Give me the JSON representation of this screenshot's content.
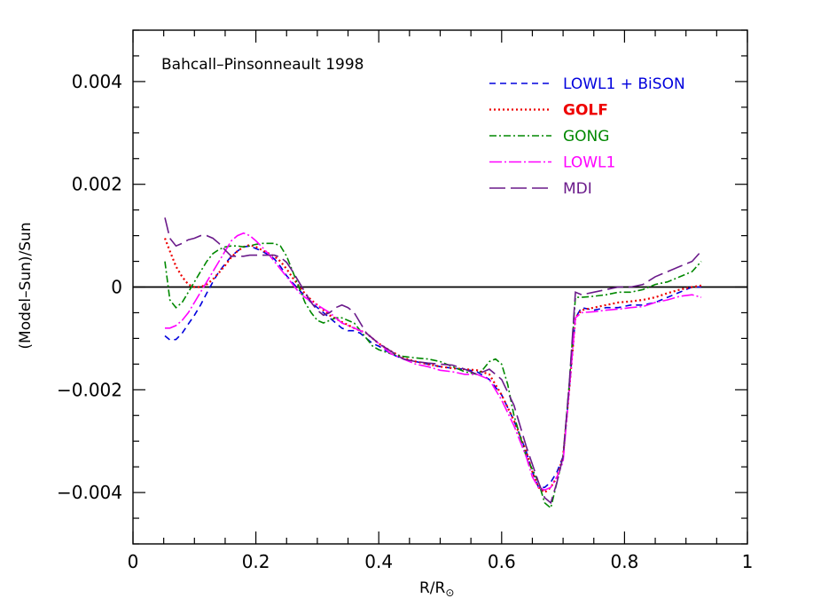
{
  "chart_data": {
    "type": "line",
    "title": "Bahcall–Pinsonneault 1998",
    "xlabel": "R/R",
    "xlabel_sub": "⊙",
    "ylabel": "(Model–Sun)/Sun",
    "xlim": [
      0,
      1
    ],
    "ylim": [
      -0.005,
      0.005
    ],
    "xticks": [
      {
        "v": 0,
        "label": "0"
      },
      {
        "v": 0.2,
        "label": "0.2"
      },
      {
        "v": 0.4,
        "label": "0.4"
      },
      {
        "v": 0.6,
        "label": "0.6"
      },
      {
        "v": 0.8,
        "label": "0.8"
      },
      {
        "v": 1,
        "label": "1"
      }
    ],
    "yticks": [
      {
        "v": -0.004,
        "label": "−0.004"
      },
      {
        "v": -0.002,
        "label": "−0.002"
      },
      {
        "v": 0,
        "label": "0"
      },
      {
        "v": 0.002,
        "label": "0.002"
      },
      {
        "v": 0.004,
        "label": "0.004"
      }
    ],
    "zero_line": true,
    "grid": false,
    "legend_position": "top-right",
    "series": [
      {
        "name": "LOWL1 + BiSON",
        "color": "#0000dd",
        "dash": "7,5",
        "bold": false,
        "x": [
          0.052,
          0.06,
          0.07,
          0.08,
          0.09,
          0.1,
          0.11,
          0.12,
          0.13,
          0.14,
          0.15,
          0.16,
          0.17,
          0.18,
          0.19,
          0.2,
          0.21,
          0.22,
          0.23,
          0.24,
          0.25,
          0.26,
          0.27,
          0.28,
          0.29,
          0.3,
          0.31,
          0.32,
          0.33,
          0.34,
          0.35,
          0.36,
          0.37,
          0.38,
          0.39,
          0.4,
          0.42,
          0.44,
          0.46,
          0.48,
          0.5,
          0.52,
          0.54,
          0.56,
          0.58,
          0.6,
          0.62,
          0.64,
          0.65,
          0.66,
          0.67,
          0.68,
          0.69,
          0.7,
          0.71,
          0.72,
          0.73,
          0.75,
          0.77,
          0.79,
          0.81,
          0.83,
          0.85,
          0.87,
          0.89,
          0.91,
          0.925
        ],
        "y": [
          -0.00095,
          -0.00103,
          -0.00102,
          -0.0009,
          -0.00072,
          -0.00055,
          -0.00035,
          -0.00012,
          0.0001,
          0.0003,
          0.00045,
          0.0006,
          0.0007,
          0.00078,
          0.0008,
          0.00075,
          0.0007,
          0.00063,
          0.00055,
          0.0004,
          0.00022,
          8e-05,
          -5e-05,
          -0.00018,
          -0.0003,
          -0.0004,
          -0.0005,
          -0.0006,
          -0.0007,
          -0.0008,
          -0.00085,
          -0.00085,
          -0.0009,
          -0.001,
          -0.0011,
          -0.00115,
          -0.0013,
          -0.0014,
          -0.00145,
          -0.0015,
          -0.00155,
          -0.00158,
          -0.0016,
          -0.00165,
          -0.0018,
          -0.0021,
          -0.0026,
          -0.0032,
          -0.0036,
          -0.0039,
          -0.0039,
          -0.0038,
          -0.0036,
          -0.0033,
          -0.002,
          -0.0006,
          -0.0004,
          -0.00045,
          -0.0004,
          -0.0004,
          -0.00035,
          -0.00035,
          -0.0003,
          -0.0002,
          -0.0001,
          0.0,
          0.0
        ]
      },
      {
        "name": "GOLF",
        "color": "#ee0000",
        "dash": "2,3",
        "bold": true,
        "x": [
          0.052,
          0.06,
          0.07,
          0.08,
          0.09,
          0.1,
          0.11,
          0.12,
          0.13,
          0.14,
          0.15,
          0.16,
          0.17,
          0.18,
          0.19,
          0.2,
          0.21,
          0.22,
          0.23,
          0.24,
          0.25,
          0.26,
          0.27,
          0.28,
          0.29,
          0.3,
          0.32,
          0.34,
          0.36,
          0.38,
          0.4,
          0.42,
          0.44,
          0.46,
          0.48,
          0.5,
          0.52,
          0.54,
          0.56,
          0.58,
          0.6,
          0.62,
          0.64,
          0.65,
          0.66,
          0.67,
          0.68,
          0.69,
          0.7,
          0.71,
          0.72,
          0.73,
          0.75,
          0.77,
          0.79,
          0.81,
          0.83,
          0.85,
          0.87,
          0.89,
          0.91,
          0.925
        ],
        "y": [
          0.00095,
          0.0007,
          0.0004,
          0.0002,
          5e-05,
          0.0,
          0.0,
          5e-05,
          0.00015,
          0.00028,
          0.00042,
          0.00058,
          0.0007,
          0.00078,
          0.00082,
          0.00078,
          0.00072,
          0.00066,
          0.0006,
          0.0005,
          0.00035,
          0.00018,
          2e-05,
          -0.00013,
          -0.00025,
          -0.00035,
          -0.00055,
          -0.00068,
          -0.0008,
          -0.0009,
          -0.0011,
          -0.00125,
          -0.00138,
          -0.00145,
          -0.0015,
          -0.00155,
          -0.00158,
          -0.0016,
          -0.00162,
          -0.0017,
          -0.0021,
          -0.0026,
          -0.0032,
          -0.0036,
          -0.0039,
          -0.004,
          -0.0039,
          -0.0037,
          -0.0033,
          -0.002,
          -0.0006,
          -0.00045,
          -0.0004,
          -0.00035,
          -0.0003,
          -0.00028,
          -0.00025,
          -0.0002,
          -0.00012,
          -5e-05,
          0.0,
          3e-05
        ]
      },
      {
        "name": "GONG",
        "color": "#008800",
        "dash": "8,3,2,3",
        "bold": false,
        "x": [
          0.052,
          0.06,
          0.07,
          0.08,
          0.09,
          0.1,
          0.11,
          0.12,
          0.13,
          0.14,
          0.15,
          0.16,
          0.17,
          0.18,
          0.19,
          0.2,
          0.21,
          0.22,
          0.23,
          0.24,
          0.25,
          0.26,
          0.27,
          0.28,
          0.29,
          0.3,
          0.31,
          0.32,
          0.33,
          0.34,
          0.35,
          0.36,
          0.37,
          0.38,
          0.39,
          0.4,
          0.42,
          0.44,
          0.46,
          0.48,
          0.5,
          0.52,
          0.54,
          0.56,
          0.57,
          0.58,
          0.59,
          0.6,
          0.61,
          0.62,
          0.64,
          0.66,
          0.67,
          0.68,
          0.69,
          0.7,
          0.71,
          0.72,
          0.73,
          0.75,
          0.77,
          0.79,
          0.81,
          0.83,
          0.85,
          0.87,
          0.89,
          0.91,
          0.925
        ],
        "y": [
          0.0005,
          -0.00025,
          -0.0004,
          -0.0003,
          -0.0001,
          0.0001,
          0.0003,
          0.0005,
          0.00065,
          0.00073,
          0.00078,
          0.0008,
          0.0008,
          0.00078,
          0.0008,
          0.00083,
          0.00085,
          0.00085,
          0.00085,
          0.0008,
          0.0006,
          0.0003,
          0.0,
          -0.0003,
          -0.0005,
          -0.00065,
          -0.0007,
          -0.00065,
          -0.0006,
          -0.0006,
          -0.00065,
          -0.0007,
          -0.00085,
          -0.001,
          -0.00115,
          -0.00122,
          -0.0013,
          -0.00135,
          -0.00138,
          -0.0014,
          -0.00145,
          -0.00155,
          -0.00165,
          -0.0017,
          -0.0016,
          -0.00145,
          -0.0014,
          -0.0015,
          -0.0019,
          -0.0025,
          -0.0033,
          -0.0038,
          -0.0042,
          -0.0043,
          -0.0038,
          -0.0033,
          -0.0019,
          -0.0002,
          -0.0002,
          -0.00018,
          -0.00015,
          -0.0001,
          -0.0001,
          -5e-05,
          5e-05,
          0.0001,
          0.0002,
          0.0003,
          0.0005
        ]
      },
      {
        "name": "LOWL1",
        "color": "#ff00ff",
        "dash": "14,3,2,3",
        "bold": false,
        "x": [
          0.052,
          0.06,
          0.07,
          0.08,
          0.09,
          0.1,
          0.11,
          0.12,
          0.13,
          0.14,
          0.15,
          0.16,
          0.17,
          0.18,
          0.19,
          0.2,
          0.21,
          0.22,
          0.23,
          0.24,
          0.25,
          0.26,
          0.27,
          0.28,
          0.29,
          0.3,
          0.32,
          0.34,
          0.36,
          0.38,
          0.4,
          0.42,
          0.44,
          0.46,
          0.48,
          0.5,
          0.52,
          0.54,
          0.56,
          0.58,
          0.6,
          0.62,
          0.64,
          0.65,
          0.66,
          0.67,
          0.68,
          0.69,
          0.7,
          0.71,
          0.72,
          0.73,
          0.75,
          0.77,
          0.79,
          0.81,
          0.83,
          0.85,
          0.87,
          0.89,
          0.91,
          0.925
        ],
        "y": [
          -0.0008,
          -0.0008,
          -0.00075,
          -0.00065,
          -0.0005,
          -0.0003,
          -0.0001,
          0.0001,
          0.0003,
          0.0005,
          0.0007,
          0.0009,
          0.001,
          0.00105,
          0.001,
          0.0009,
          0.00078,
          0.00065,
          0.0005,
          0.00035,
          0.0002,
          5e-05,
          -0.0001,
          -0.0002,
          -0.00028,
          -0.00035,
          -0.0005,
          -0.0007,
          -0.0008,
          -0.0009,
          -0.0011,
          -0.0013,
          -0.0014,
          -0.0015,
          -0.00155,
          -0.00162,
          -0.00165,
          -0.0017,
          -0.0017,
          -0.0018,
          -0.0022,
          -0.0027,
          -0.0033,
          -0.0037,
          -0.0039,
          -0.00395,
          -0.0039,
          -0.0037,
          -0.0034,
          -0.002,
          -0.0006,
          -0.0005,
          -0.00048,
          -0.00045,
          -0.00043,
          -0.0004,
          -0.00038,
          -0.0003,
          -0.00025,
          -0.00018,
          -0.00015,
          -0.0002
        ]
      },
      {
        "name": "MDI",
        "color": "#6a1a8a",
        "dash": "18,6",
        "bold": false,
        "x": [
          0.052,
          0.06,
          0.07,
          0.08,
          0.09,
          0.1,
          0.11,
          0.12,
          0.13,
          0.14,
          0.15,
          0.16,
          0.17,
          0.18,
          0.19,
          0.2,
          0.21,
          0.22,
          0.23,
          0.24,
          0.25,
          0.26,
          0.27,
          0.28,
          0.29,
          0.3,
          0.31,
          0.32,
          0.33,
          0.34,
          0.35,
          0.36,
          0.37,
          0.38,
          0.39,
          0.4,
          0.42,
          0.44,
          0.46,
          0.48,
          0.5,
          0.52,
          0.54,
          0.56,
          0.58,
          0.6,
          0.62,
          0.64,
          0.66,
          0.67,
          0.68,
          0.69,
          0.7,
          0.71,
          0.72,
          0.73,
          0.75,
          0.77,
          0.79,
          0.81,
          0.83,
          0.85,
          0.87,
          0.89,
          0.91,
          0.925
        ],
        "y": [
          0.00135,
          0.00095,
          0.0008,
          0.00085,
          0.00092,
          0.00095,
          0.001,
          0.001,
          0.00095,
          0.00085,
          0.00072,
          0.0006,
          0.0006,
          0.0006,
          0.00062,
          0.00062,
          0.00062,
          0.00062,
          0.00062,
          0.00058,
          0.00048,
          0.0003,
          0.0001,
          -0.0001,
          -0.0003,
          -0.00045,
          -0.00055,
          -0.0005,
          -0.0004,
          -0.00035,
          -0.0004,
          -0.0005,
          -0.0007,
          -0.0009,
          -0.001,
          -0.0011,
          -0.00125,
          -0.0014,
          -0.00145,
          -0.00148,
          -0.0015,
          -0.00152,
          -0.0016,
          -0.0017,
          -0.0016,
          -0.0018,
          -0.0023,
          -0.0031,
          -0.0038,
          -0.0041,
          -0.0042,
          -0.0038,
          -0.0033,
          -0.0019,
          -0.0001,
          -0.00015,
          -0.0001,
          -5e-05,
          0.0,
          0.0,
          5e-05,
          0.0002,
          0.0003,
          0.0004,
          0.0005,
          0.0007
        ]
      }
    ]
  }
}
